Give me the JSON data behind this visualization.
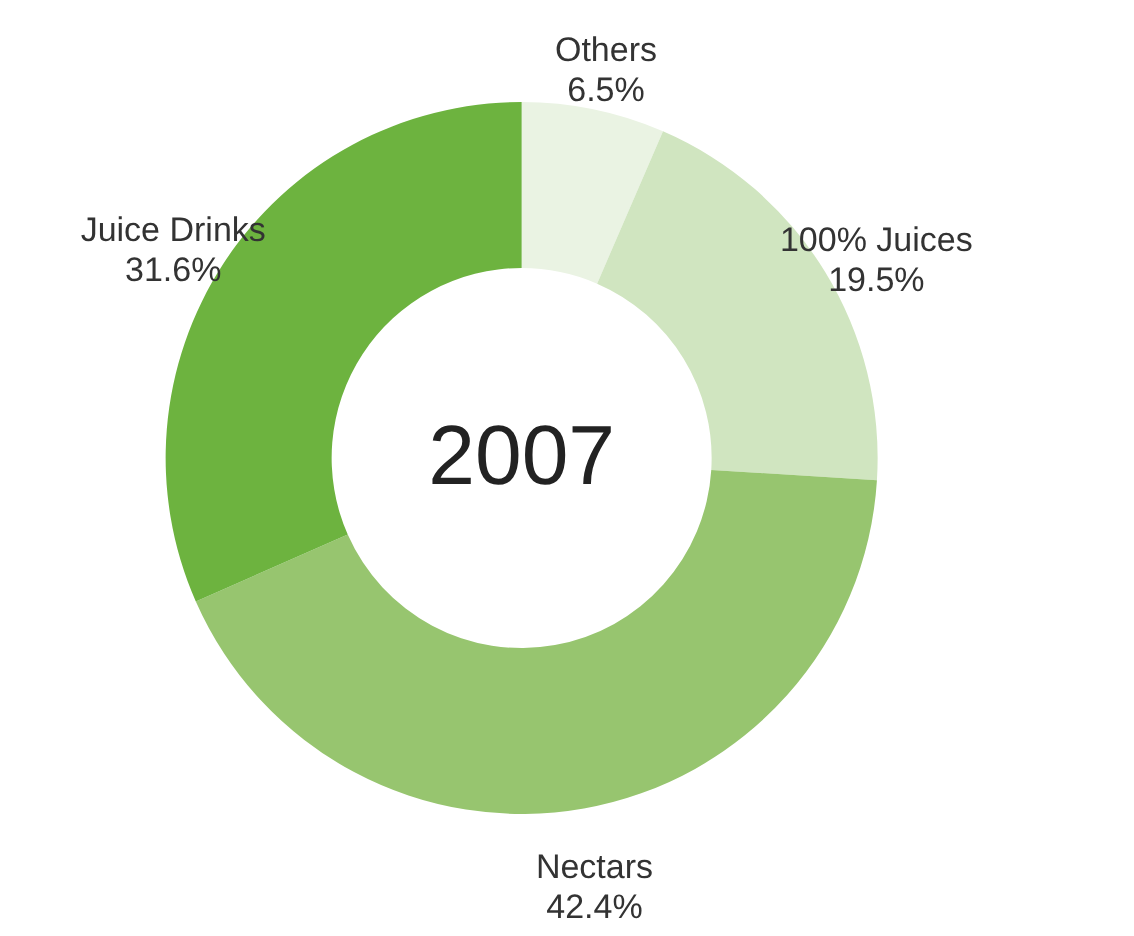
{
  "chart_data": {
    "type": "donut",
    "title": "2007",
    "categories": [
      "Others",
      "100% Juices",
      "Nectars",
      "Juice Drinks"
    ],
    "values": [
      6.5,
      19.5,
      42.4,
      31.6
    ],
    "value_labels": [
      "6.5%",
      "19.5%",
      "42.4%",
      "31.6%"
    ],
    "colors": [
      "#eaf3e3",
      "#d0e5c0",
      "#97c56f",
      "#6db33f"
    ]
  }
}
